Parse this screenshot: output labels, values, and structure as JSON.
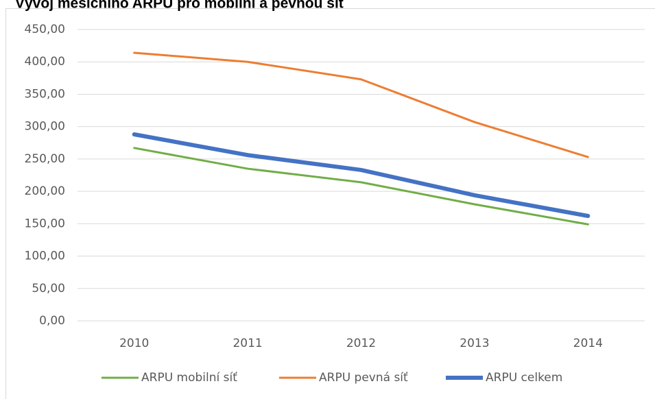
{
  "chart_data": {
    "type": "line",
    "title": "Vývoj měsíčního ARPU pro mobilní a pevnou síť",
    "categories": [
      "2010",
      "2011",
      "2012",
      "2013",
      "2014"
    ],
    "series": [
      {
        "name": "ARPU mobilní síť",
        "color": "#70ad47",
        "values": [
          267,
          235,
          214,
          180,
          149
        ]
      },
      {
        "name": "ARPU pevná síť",
        "color": "#ed7d31",
        "values": [
          414,
          400,
          373,
          307,
          253
        ]
      },
      {
        "name": "ARPU celkem",
        "color": "#4472c4",
        "values": [
          288,
          256,
          233,
          194,
          162
        ]
      }
    ],
    "ylim": [
      0,
      450
    ],
    "yticks": [
      {
        "value": 0,
        "label": "0,00"
      },
      {
        "value": 50,
        "label": "50,00"
      },
      {
        "value": 100,
        "label": "100,00"
      },
      {
        "value": 150,
        "label": "150,00"
      },
      {
        "value": 200,
        "label": "200,00"
      },
      {
        "value": 250,
        "label": "250,00"
      },
      {
        "value": 300,
        "label": "300,00"
      },
      {
        "value": 350,
        "label": "350,00"
      },
      {
        "value": 400,
        "label": "400,00"
      },
      {
        "value": 450,
        "label": "450,00"
      }
    ],
    "grid": true,
    "legend": "bottom"
  }
}
